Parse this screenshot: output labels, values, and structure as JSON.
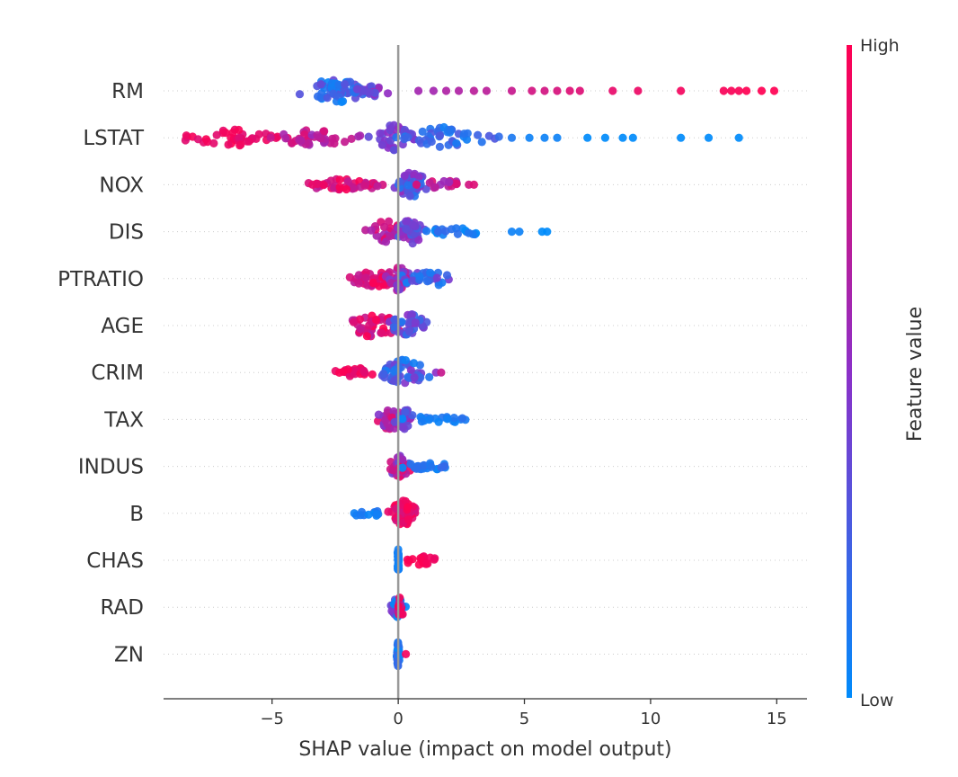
{
  "chart_data": {
    "type": "scatter",
    "subtype": "shap-beeswarm",
    "xlabel": "SHAP value (impact on model output)",
    "xlim": [
      -9.3,
      16.2
    ],
    "xticks": [
      -5,
      0,
      5,
      10,
      15
    ],
    "xtick_labels": [
      "−5",
      "0",
      "5",
      "10",
      "15"
    ],
    "zero_line": 0,
    "grid": false,
    "colorbar": {
      "title": "Feature value",
      "high_label": "High",
      "low_label": "Low",
      "high_color": "#ff0052",
      "mid_color": "#8c30c8",
      "low_color": "#008bfb"
    },
    "features": [
      {
        "name": "RM",
        "clusters": [
          {
            "center": -2.5,
            "spread": 2.0,
            "count": 55,
            "fmin": 0.0,
            "fmax": 0.4,
            "width": 1.0
          },
          {
            "center": -1.0,
            "spread": 1.5,
            "count": 20,
            "fmin": 0.3,
            "fmax": 0.6,
            "width": 0.5
          }
        ],
        "singles": [
          {
            "x": 0.8,
            "f": 0.6
          },
          {
            "x": 1.4,
            "f": 0.6
          },
          {
            "x": 1.9,
            "f": 0.65
          },
          {
            "x": 2.4,
            "f": 0.65
          },
          {
            "x": 3.0,
            "f": 0.7
          },
          {
            "x": 3.5,
            "f": 0.7
          },
          {
            "x": 4.5,
            "f": 0.75
          },
          {
            "x": 5.3,
            "f": 0.8
          },
          {
            "x": 5.8,
            "f": 0.8
          },
          {
            "x": 6.3,
            "f": 0.82
          },
          {
            "x": 6.8,
            "f": 0.85
          },
          {
            "x": 7.2,
            "f": 0.85
          },
          {
            "x": 8.5,
            "f": 0.9
          },
          {
            "x": 9.5,
            "f": 0.92
          },
          {
            "x": 11.2,
            "f": 0.95
          },
          {
            "x": 12.9,
            "f": 0.97
          },
          {
            "x": 13.2,
            "f": 0.98
          },
          {
            "x": 13.5,
            "f": 0.98
          },
          {
            "x": 13.8,
            "f": 1.0
          },
          {
            "x": 14.4,
            "f": 1.0
          },
          {
            "x": 14.9,
            "f": 1.0
          }
        ]
      },
      {
        "name": "LSTAT",
        "clusters": [
          {
            "center": -6.5,
            "spread": 3.0,
            "count": 40,
            "fmin": 0.85,
            "fmax": 1.0,
            "width": 0.6
          },
          {
            "center": -3.5,
            "spread": 3.0,
            "count": 40,
            "fmin": 0.55,
            "fmax": 0.85,
            "width": 0.6
          },
          {
            "center": -0.2,
            "spread": 1.4,
            "count": 35,
            "fmin": 0.3,
            "fmax": 0.55,
            "width": 1.0
          },
          {
            "center": 1.8,
            "spread": 3.0,
            "count": 45,
            "fmin": 0.05,
            "fmax": 0.3,
            "width": 0.8
          }
        ],
        "singles": [
          {
            "x": 4.5,
            "f": 0.1
          },
          {
            "x": 5.2,
            "f": 0.05
          },
          {
            "x": 5.8,
            "f": 0.05
          },
          {
            "x": 6.3,
            "f": 0.05
          },
          {
            "x": 7.5,
            "f": 0.0
          },
          {
            "x": 8.2,
            "f": 0.0
          },
          {
            "x": 8.9,
            "f": 0.0
          },
          {
            "x": 9.3,
            "f": 0.0
          },
          {
            "x": 11.2,
            "f": 0.0
          },
          {
            "x": 12.3,
            "f": 0.0
          },
          {
            "x": 13.5,
            "f": 0.0
          }
        ]
      },
      {
        "name": "NOX",
        "clusters": [
          {
            "center": -2.2,
            "spread": 2.6,
            "count": 40,
            "fmin": 0.7,
            "fmax": 1.0,
            "width": 0.4
          },
          {
            "center": 0.5,
            "spread": 1.2,
            "count": 45,
            "fmin": 0.1,
            "fmax": 0.55,
            "width": 1.0
          },
          {
            "center": 1.8,
            "spread": 1.6,
            "count": 15,
            "fmin": 0.55,
            "fmax": 0.85,
            "width": 0.3
          }
        ],
        "singles": [
          {
            "x": -3.4,
            "f": 0.9
          },
          {
            "x": 2.8,
            "f": 0.8
          },
          {
            "x": 3.0,
            "f": 0.85
          }
        ]
      },
      {
        "name": "DIS",
        "clusters": [
          {
            "center": -0.4,
            "spread": 1.5,
            "count": 30,
            "fmin": 0.55,
            "fmax": 0.95,
            "width": 0.9
          },
          {
            "center": 0.5,
            "spread": 0.9,
            "count": 35,
            "fmin": 0.2,
            "fmax": 0.6,
            "width": 1.0
          },
          {
            "center": 2.3,
            "spread": 2.2,
            "count": 20,
            "fmin": 0.0,
            "fmax": 0.2,
            "width": 0.25
          }
        ],
        "singles": [
          {
            "x": 4.5,
            "f": 0.05
          },
          {
            "x": 4.8,
            "f": 0.05
          },
          {
            "x": 5.7,
            "f": 0.0
          },
          {
            "x": 5.9,
            "f": 0.0
          }
        ]
      },
      {
        "name": "PTRATIO",
        "clusters": [
          {
            "center": -0.9,
            "spread": 2.0,
            "count": 40,
            "fmin": 0.7,
            "fmax": 1.0,
            "width": 0.6
          },
          {
            "center": 0.0,
            "spread": 0.8,
            "count": 30,
            "fmin": 0.4,
            "fmax": 0.8,
            "width": 1.0
          },
          {
            "center": 1.2,
            "spread": 1.8,
            "count": 30,
            "fmin": 0.05,
            "fmax": 0.45,
            "width": 0.6
          }
        ],
        "singles": []
      },
      {
        "name": "AGE",
        "clusters": [
          {
            "center": -0.9,
            "spread": 1.8,
            "count": 45,
            "fmin": 0.65,
            "fmax": 1.0,
            "width": 1.0
          },
          {
            "center": 0.4,
            "spread": 1.2,
            "count": 40,
            "fmin": 0.1,
            "fmax": 0.55,
            "width": 1.0
          }
        ],
        "singles": []
      },
      {
        "name": "CRIM",
        "clusters": [
          {
            "center": -1.6,
            "spread": 1.3,
            "count": 25,
            "fmin": 0.85,
            "fmax": 1.0,
            "width": 0.3
          },
          {
            "center": 0.2,
            "spread": 1.8,
            "count": 55,
            "fmin": 0.05,
            "fmax": 0.5,
            "width": 1.0
          }
        ],
        "singles": [
          {
            "x": 1.5,
            "f": 0.5
          },
          {
            "x": 1.7,
            "f": 0.75
          }
        ]
      },
      {
        "name": "TAX",
        "clusters": [
          {
            "center": -0.3,
            "spread": 1.3,
            "count": 30,
            "fmin": 0.45,
            "fmax": 0.9,
            "width": 0.8
          },
          {
            "center": 0.3,
            "spread": 0.6,
            "count": 20,
            "fmin": 0.2,
            "fmax": 0.5,
            "width": 0.8
          },
          {
            "center": 1.6,
            "spread": 2.2,
            "count": 20,
            "fmin": 0.0,
            "fmax": 0.15,
            "width": 0.2
          }
        ],
        "singles": []
      },
      {
        "name": "INDUS",
        "clusters": [
          {
            "center": 0.0,
            "spread": 0.8,
            "count": 40,
            "fmin": 0.3,
            "fmax": 0.95,
            "width": 0.9
          },
          {
            "center": 1.2,
            "spread": 1.8,
            "count": 25,
            "fmin": 0.0,
            "fmax": 0.2,
            "width": 0.2
          }
        ],
        "singles": []
      },
      {
        "name": "B",
        "clusters": [
          {
            "center": -1.2,
            "spread": 1.1,
            "count": 12,
            "fmin": 0.0,
            "fmax": 0.15,
            "width": 0.2
          },
          {
            "center": 0.2,
            "spread": 0.9,
            "count": 65,
            "fmin": 0.8,
            "fmax": 1.0,
            "width": 1.0
          }
        ],
        "singles": []
      },
      {
        "name": "CHAS",
        "clusters": [
          {
            "center": 0.0,
            "spread": 0.06,
            "count": 30,
            "fmin": 0.0,
            "fmax": 0.1,
            "width": 1.0
          },
          {
            "center": 0.9,
            "spread": 1.3,
            "count": 20,
            "fmin": 0.9,
            "fmax": 1.0,
            "width": 0.3
          }
        ],
        "singles": []
      },
      {
        "name": "RAD",
        "clusters": [
          {
            "center": 0.0,
            "spread": 0.45,
            "count": 30,
            "fmin": 0.0,
            "fmax": 0.5,
            "width": 0.8
          },
          {
            "center": 0.1,
            "spread": 0.2,
            "count": 12,
            "fmin": 0.7,
            "fmax": 1.0,
            "width": 1.0
          }
        ],
        "singles": []
      },
      {
        "name": "ZN",
        "clusters": [
          {
            "center": 0.0,
            "spread": 0.1,
            "count": 30,
            "fmin": 0.0,
            "fmax": 0.2,
            "width": 1.0
          }
        ],
        "singles": [
          {
            "x": 0.3,
            "f": 0.95
          }
        ]
      }
    ]
  }
}
